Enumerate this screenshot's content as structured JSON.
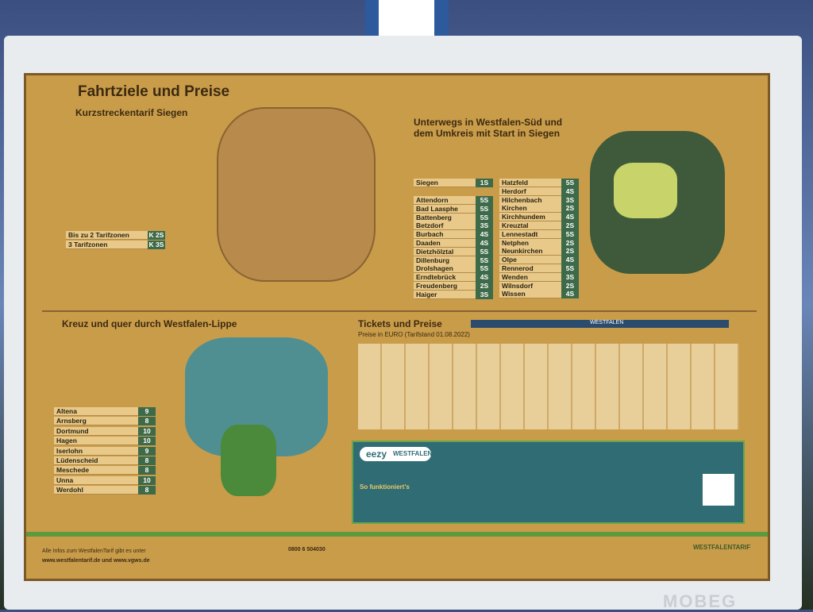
{
  "sign": {
    "title": "Fahrtziele und Preise",
    "short": {
      "heading": "Kurzstreckentarif Siegen",
      "rows": [
        [
          "Bis zu 2 Tarifzonen",
          "K 2S"
        ],
        [
          "3 Tarifzonen",
          "K 3S"
        ]
      ]
    },
    "south": {
      "heading": "Unterwegs in Westfalen-Süd und dem Umkreis mit Start in Siegen",
      "start": [
        "Siegen",
        "1S"
      ],
      "left": [
        [
          "Attendorn",
          "5S"
        ],
        [
          "Bad Laasphe",
          "5S"
        ],
        [
          "Battenberg",
          "5S"
        ],
        [
          "Betzdorf",
          "3S"
        ],
        [
          "Burbach",
          "4S"
        ],
        [
          "Daaden",
          "4S"
        ],
        [
          "Dietzhölztal",
          "5S"
        ],
        [
          "Dillenburg",
          "5S"
        ],
        [
          "Drolshagen",
          "5S"
        ],
        [
          "Erndtebrück",
          "4S"
        ],
        [
          "Freudenberg",
          "2S"
        ],
        [
          "Haiger",
          "3S"
        ]
      ],
      "right": [
        [
          "Hatzfeld",
          "5S"
        ],
        [
          "Herdorf",
          "4S"
        ],
        [
          "Hilchenbach",
          "3S"
        ],
        [
          "Kirchen",
          "2S"
        ],
        [
          "Kirchhundem",
          "4S"
        ],
        [
          "Kreuztal",
          "2S"
        ],
        [
          "Lennestadt",
          "5S"
        ],
        [
          "Netphen",
          "2S"
        ],
        [
          "Neunkirchen",
          "2S"
        ],
        [
          "Olpe",
          "4S"
        ],
        [
          "Rennerod",
          "5S"
        ],
        [
          "Wenden",
          "3S"
        ],
        [
          "Wilnsdorf",
          "2S"
        ],
        [
          "Wissen",
          "4S"
        ]
      ]
    },
    "lippe": {
      "heading": "Kreuz und quer durch Westfalen-Lippe",
      "rows": [
        [
          "Altena",
          "9"
        ],
        [
          "Arnsberg",
          "8"
        ],
        [
          "Dortmund",
          "10"
        ],
        [
          "Hagen",
          "10"
        ],
        [
          "Iserlohn",
          "9"
        ],
        [
          "Lüdenscheid",
          "8"
        ],
        [
          "Meschede",
          "8"
        ],
        [
          "Unna",
          "10"
        ],
        [
          "Werdohl",
          "8"
        ]
      ]
    },
    "tickets": {
      "heading": "Tickets und Preise",
      "subheading": "Preise in EURO (Tarifstand 01.08.2022)",
      "band": "WESTFALEN"
    },
    "eezy": {
      "logo": "eezy",
      "brand": "WESTFALEN",
      "how": "So funktioniert's"
    },
    "footer": {
      "info": "Alle Infos zum WestfalenTarif gibt es unter",
      "web": "www.westfalentarif.de und www.vgws.de",
      "phone": "0800 6 504030",
      "logo": "WESTFALENTARIF"
    },
    "frame": "MOBEG"
  }
}
